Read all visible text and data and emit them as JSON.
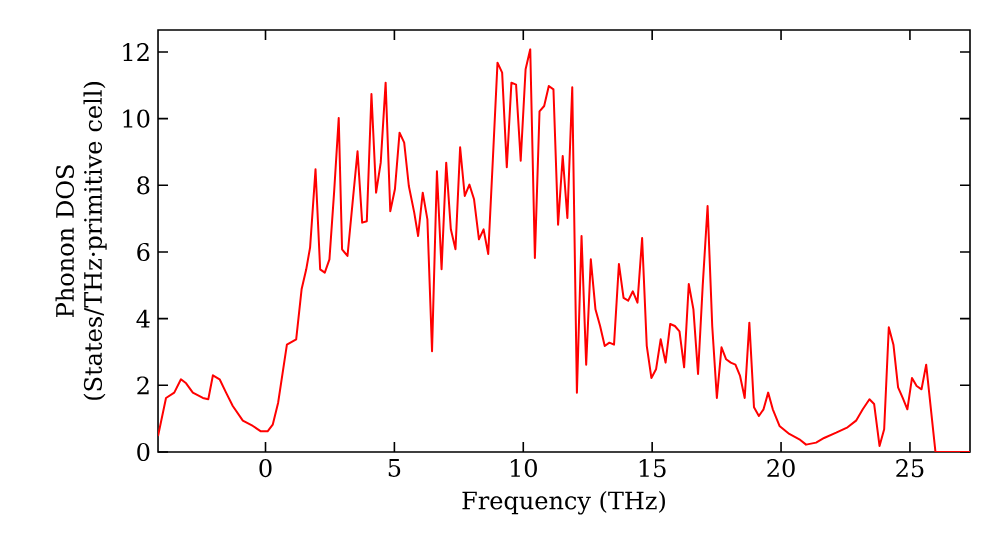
{
  "chart_data": {
    "type": "line",
    "xlabel": "Frequency (THz)",
    "ylabel": "Phonon DOS (States/THz·primitive cell)",
    "xlim": [
      -4.17,
      27.33
    ],
    "ylim": [
      0,
      12.66
    ],
    "xticks": [
      0,
      5,
      10,
      15,
      20,
      25
    ],
    "yticks": [
      0,
      2,
      4,
      6,
      8,
      10,
      12
    ],
    "marker": "none",
    "line_style": "solid",
    "series": [
      {
        "color": "#ff0000",
        "x": [
          -4.17,
          -3.86,
          -3.54,
          -3.28,
          -3.08,
          -2.82,
          -2.43,
          -2.22,
          -2.04,
          -1.78,
          -1.53,
          -1.27,
          -0.88,
          -0.49,
          -0.18,
          0.08,
          0.28,
          0.49,
          0.83,
          1.19,
          1.4,
          1.58,
          1.73,
          1.94,
          2.12,
          2.3,
          2.48,
          2.66,
          2.84,
          2.97,
          3.18,
          3.39,
          3.57,
          3.75,
          3.93,
          4.11,
          4.29,
          4.47,
          4.66,
          4.84,
          5.02,
          5.2,
          5.38,
          5.56,
          5.77,
          5.92,
          6.1,
          6.28,
          6.46,
          6.65,
          6.83,
          7.01,
          7.19,
          7.37,
          7.55,
          7.73,
          7.91,
          8.09,
          8.28,
          8.46,
          8.64,
          8.82,
          9.0,
          9.18,
          9.36,
          9.54,
          9.72,
          9.9,
          10.09,
          10.27,
          10.45,
          10.63,
          10.81,
          10.99,
          11.17,
          11.35,
          11.53,
          11.71,
          11.9,
          12.08,
          12.26,
          12.44,
          12.62,
          12.8,
          12.98,
          13.16,
          13.34,
          13.52,
          13.71,
          13.89,
          14.07,
          14.25,
          14.43,
          14.61,
          14.79,
          14.97,
          15.15,
          15.33,
          15.52,
          15.7,
          15.88,
          16.06,
          16.24,
          16.42,
          16.6,
          16.78,
          16.96,
          17.15,
          17.33,
          17.51,
          17.69,
          17.87,
          18.05,
          18.23,
          18.41,
          18.59,
          18.77,
          18.95,
          19.14,
          19.32,
          19.5,
          19.68,
          19.94,
          20.32,
          20.71,
          20.97,
          21.36,
          21.67,
          22.14,
          22.58,
          22.91,
          23.17,
          23.43,
          23.61,
          23.82,
          24.0,
          24.18,
          24.36,
          24.54,
          24.72,
          24.9,
          25.08,
          25.26,
          25.45,
          25.63,
          25.99,
          27.33
        ],
        "values": [
          0.48,
          1.62,
          1.78,
          2.18,
          2.06,
          1.78,
          1.62,
          1.58,
          2.3,
          2.18,
          1.78,
          1.38,
          0.94,
          0.78,
          0.62,
          0.62,
          0.82,
          1.48,
          3.22,
          3.38,
          4.88,
          5.48,
          6.14,
          8.48,
          5.48,
          5.38,
          5.78,
          7.78,
          10.02,
          6.08,
          5.88,
          7.58,
          9.02,
          6.88,
          6.92,
          10.74,
          7.78,
          8.68,
          11.08,
          7.22,
          7.88,
          9.58,
          9.28,
          7.98,
          7.18,
          6.48,
          7.78,
          6.98,
          3.02,
          8.42,
          5.48,
          8.68,
          6.68,
          6.08,
          9.14,
          7.68,
          8.02,
          7.58,
          6.38,
          6.68,
          5.94,
          8.78,
          11.68,
          11.38,
          8.54,
          11.08,
          11.02,
          8.74,
          11.48,
          12.08,
          5.82,
          10.22,
          10.38,
          10.98,
          10.88,
          6.82,
          8.88,
          7.02,
          10.94,
          1.78,
          6.48,
          2.62,
          5.78,
          4.28,
          3.78,
          3.18,
          3.28,
          3.22,
          5.64,
          4.62,
          4.54,
          4.82,
          4.48,
          6.42,
          3.18,
          2.22,
          2.48,
          3.38,
          2.68,
          3.84,
          3.78,
          3.62,
          2.54,
          5.04,
          4.28,
          2.34,
          4.98,
          7.38,
          3.78,
          1.62,
          3.14,
          2.78,
          2.68,
          2.62,
          2.28,
          1.62,
          3.88,
          1.34,
          1.08,
          1.28,
          1.78,
          1.28,
          0.78,
          0.54,
          0.38,
          0.22,
          0.28,
          0.42,
          0.58,
          0.74,
          0.94,
          1.28,
          1.58,
          1.44,
          0.18,
          0.68,
          3.74,
          3.22,
          1.94,
          1.62,
          1.28,
          2.22,
          1.98,
          1.88,
          2.62,
          0,
          0
        ]
      }
    ]
  }
}
